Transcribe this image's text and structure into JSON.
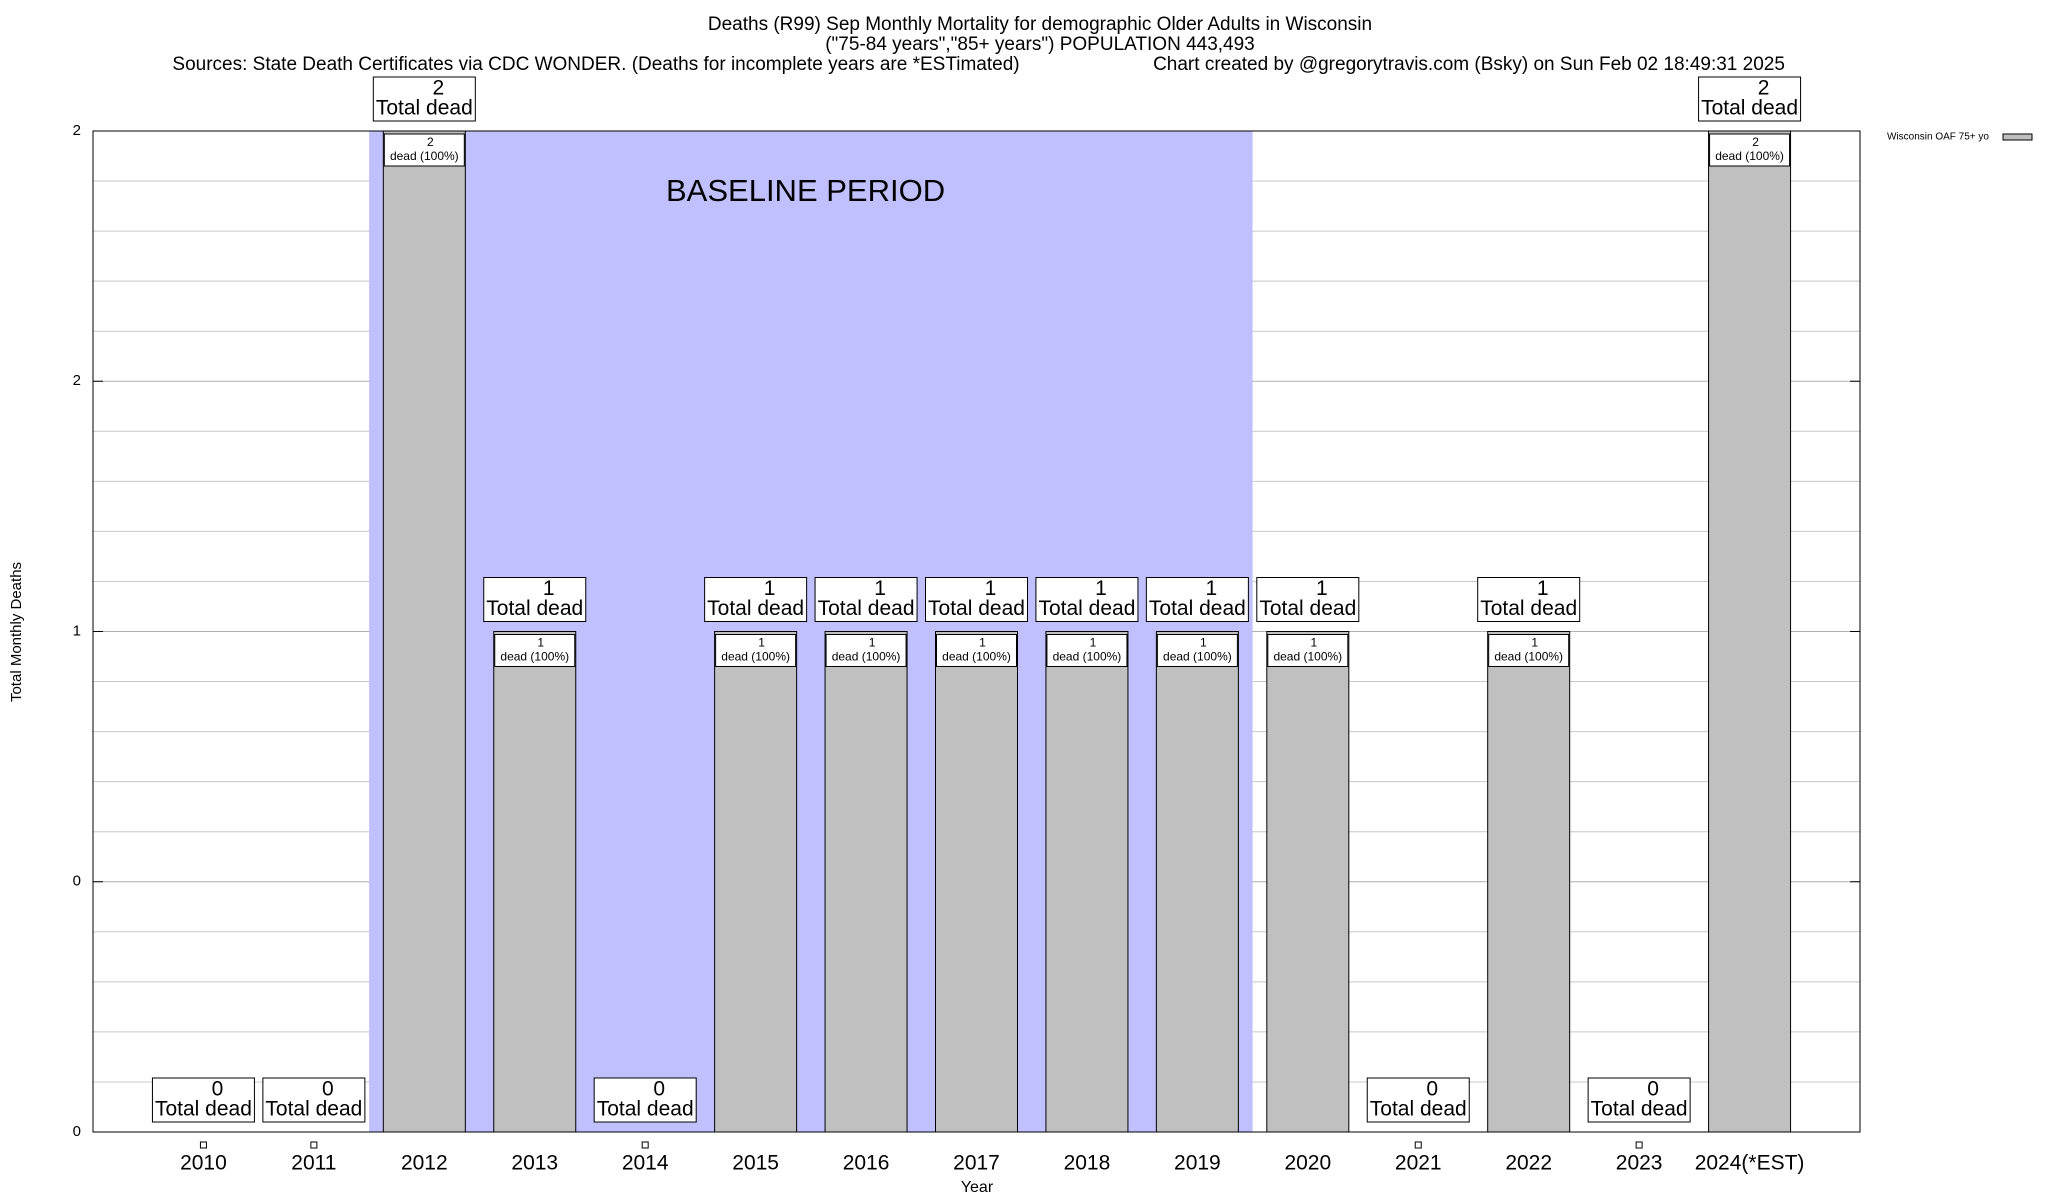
{
  "chart_data": {
    "type": "bar",
    "title": "Deaths (R99) Sep Monthly Mortality for demographic Older Adults in Wisconsin",
    "subtitle": "(\"75-84 years\",\"85+ years\") POPULATION 443,493",
    "source": "Sources: State Death Certificates via CDC WONDER. (Deaths for incomplete years are *ESTimated)",
    "credit": "Chart created by @gregorytravis.com (Bsky) on Sun Feb 02 18:49:31 2025",
    "x_label": "Year",
    "y_label": "Total Monthly Deaths",
    "categories": [
      "2010",
      "2011",
      "2012",
      "2013",
      "2014",
      "2015",
      "2016",
      "2017",
      "2018",
      "2019",
      "2020",
      "2021",
      "2022",
      "2023",
      "2024(*EST)"
    ],
    "series": [
      {
        "name": "Wisconsin OAF 75+ yo",
        "color": "#c0c0c0",
        "values": [
          0,
          0,
          2,
          1,
          0,
          1,
          1,
          1,
          1,
          1,
          1,
          0,
          1,
          0,
          2
        ]
      }
    ],
    "outer_label_text": "Total dead",
    "inner_label_text": "dead (100%)",
    "ylim": [
      0,
      2
    ],
    "yticks": [
      0,
      {
        "value": 0.5,
        "label": "0"
      },
      1,
      {
        "value": 1.5,
        "label": "2"
      },
      2
    ],
    "minor_yticks": [
      0.1,
      0.2,
      0.3,
      0.4,
      0.6,
      0.7,
      0.8,
      0.9,
      1.1,
      1.2,
      1.3,
      1.4,
      1.6,
      1.7,
      1.8,
      1.9
    ],
    "grid": true,
    "legend": "top-right",
    "shaded_region": {
      "from": "2012",
      "to": "2019",
      "label": "BASELINE PERIOD",
      "color": "#c0c0ff"
    }
  }
}
